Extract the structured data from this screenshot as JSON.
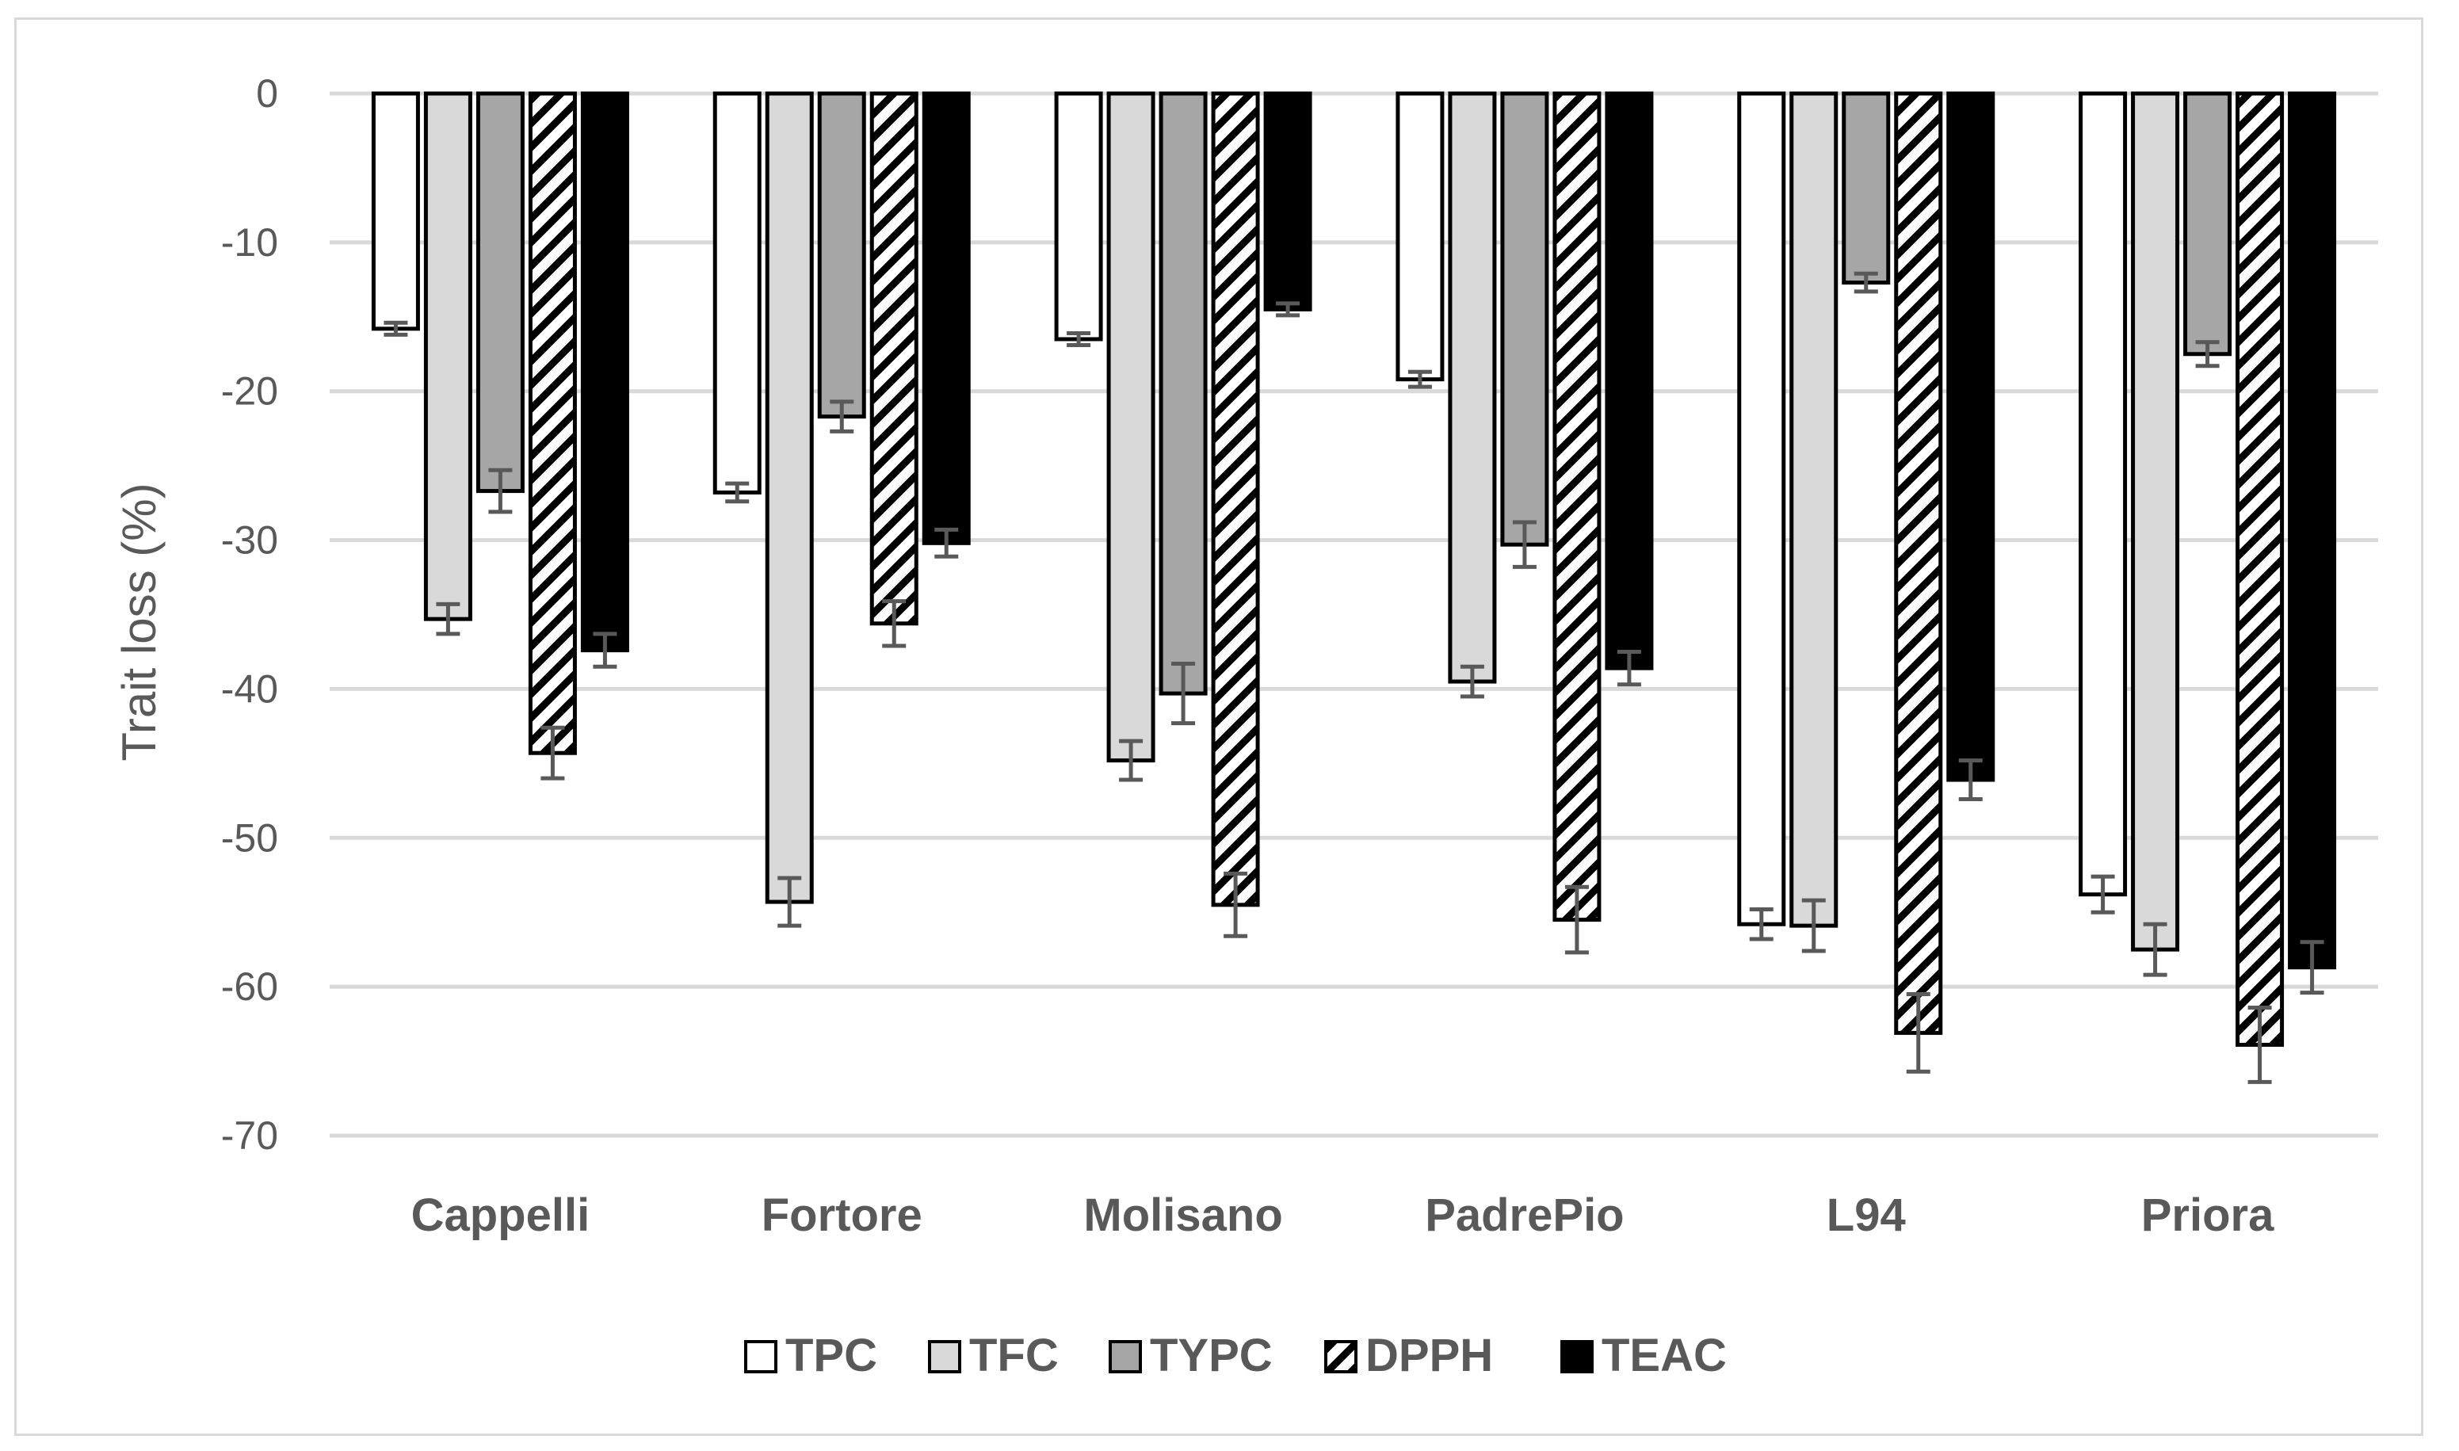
{
  "chart_data": {
    "type": "bar",
    "title": "",
    "xlabel": "",
    "ylabel": "Trait loss (%)",
    "ylim": [
      -70,
      0
    ],
    "yticks": [
      0,
      -10,
      -20,
      -30,
      -40,
      -50,
      -60,
      -70
    ],
    "grid": true,
    "legend_position": "bottom",
    "categories": [
      "Cappelli",
      "Fortore",
      "Molisano",
      "PadrePio",
      "L94",
      "Priora"
    ],
    "series": [
      {
        "name": "TPC",
        "fill": "#ffffff",
        "pattern": "solid",
        "values": [
          -15.8,
          -26.8,
          -16.5,
          -19.2,
          -55.8,
          -53.8
        ],
        "errors": [
          0.4,
          0.6,
          0.4,
          0.5,
          1.0,
          1.2
        ]
      },
      {
        "name": "TFC",
        "fill": "#d9d9d9",
        "pattern": "solid",
        "values": [
          -35.3,
          -54.3,
          -44.8,
          -39.5,
          -55.9,
          -57.5
        ],
        "errors": [
          1.0,
          1.6,
          1.3,
          1.0,
          1.7,
          1.7
        ]
      },
      {
        "name": "TYPC",
        "fill": "#a6a6a6",
        "pattern": "solid",
        "values": [
          -26.7,
          -21.7,
          -40.3,
          -30.3,
          -12.7,
          -17.5
        ],
        "errors": [
          1.4,
          1.0,
          2.0,
          1.5,
          0.6,
          0.8
        ]
      },
      {
        "name": "DPPH",
        "fill": "#000000",
        "pattern": "diagonal-stripes",
        "values": [
          -44.3,
          -35.6,
          -54.5,
          -55.5,
          -63.1,
          -63.9
        ],
        "errors": [
          1.7,
          1.5,
          2.1,
          2.2,
          2.6,
          2.5
        ]
      },
      {
        "name": "TEAC",
        "fill": "#000000",
        "pattern": "solid",
        "values": [
          -37.4,
          -30.2,
          -14.5,
          -38.6,
          -46.1,
          -58.7
        ],
        "errors": [
          1.1,
          0.9,
          0.4,
          1.1,
          1.3,
          1.7
        ]
      }
    ]
  }
}
